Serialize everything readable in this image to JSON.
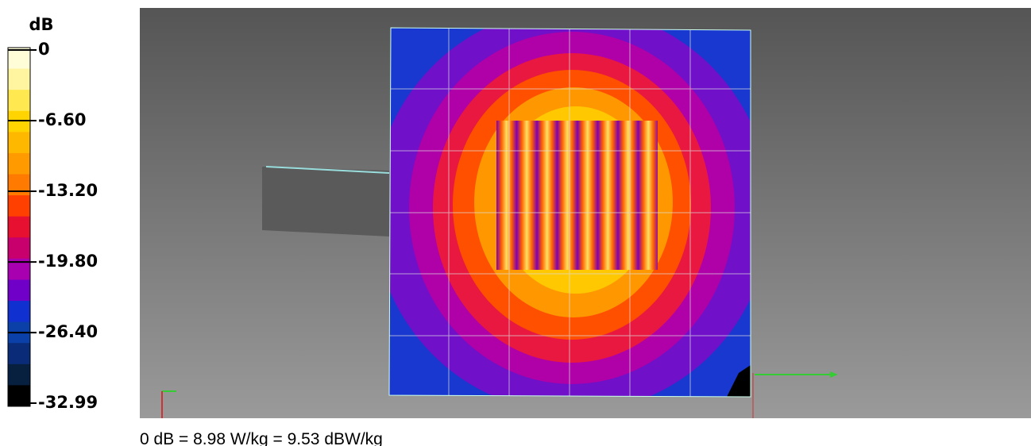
{
  "colorbar": {
    "unit": "dB",
    "ticks": [
      {
        "value": 0,
        "label": "0"
      },
      {
        "value": -6.6,
        "label": "-6.60"
      },
      {
        "value": -13.2,
        "label": "-13.20"
      },
      {
        "value": -19.8,
        "label": "-19.80"
      },
      {
        "value": -26.4,
        "label": "-26.40"
      },
      {
        "value": -32.99,
        "label": "-32.99"
      }
    ],
    "colors": [
      "#fffcd8",
      "#fff4a0",
      "#ffe850",
      "#ffd400",
      "#ffb800",
      "#ff9a00",
      "#ff7a00",
      "#ff4000",
      "#e81030",
      "#c8006e",
      "#a800b0",
      "#7000c8",
      "#1030d0",
      "#0a40a8",
      "#0a2c78",
      "#082040",
      "#000000"
    ]
  },
  "caption": "0 dB = 8.98 W/kg = 9.53 dBW/kg"
}
